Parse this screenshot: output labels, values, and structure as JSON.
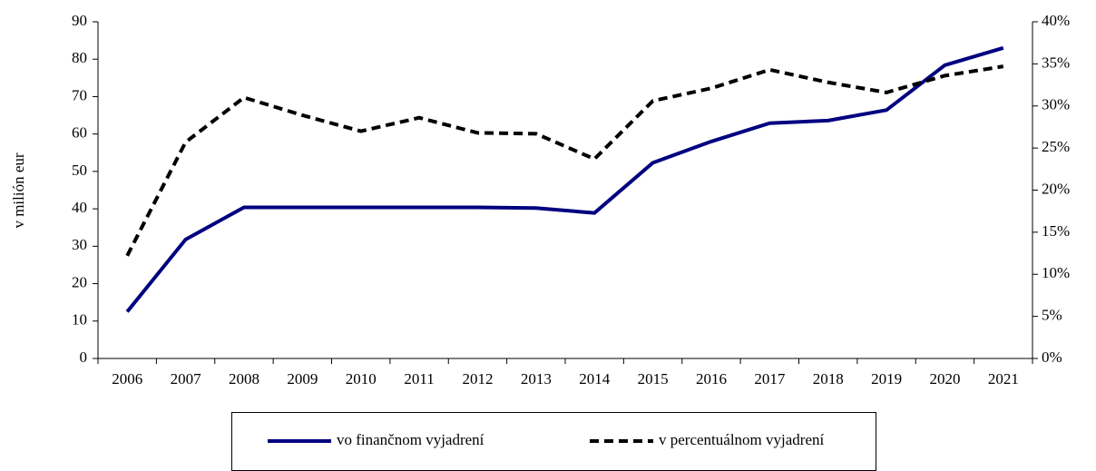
{
  "chart_data": {
    "type": "line",
    "y_label": "v milión eur",
    "categories": [
      "2006",
      "2007",
      "2008",
      "2009",
      "2010",
      "2011",
      "2012",
      "2013",
      "2014",
      "2015",
      "2016",
      "2017",
      "2018",
      "2019",
      "2020",
      "2021"
    ],
    "series": [
      {
        "name": "vo finančnom vyjadrení",
        "color": "#000080",
        "line_style": "solid",
        "values": [
          12.5,
          31.8,
          40.4,
          40.4,
          40.4,
          40.4,
          40.4,
          40.2,
          38.9,
          52.3,
          58.0,
          62.9,
          63.6,
          66.4,
          78.4,
          83.0
        ]
      },
      {
        "name": "v percentuálnom vyjadrení",
        "color": "#000000",
        "line_style": "dashed",
        "axis": "y2",
        "values": [
          12.2,
          25.7,
          31.0,
          28.9,
          27.0,
          28.6,
          26.8,
          26.7,
          23.7,
          30.6,
          32.1,
          34.3,
          32.8,
          31.6,
          33.6,
          34.7
        ]
      }
    ],
    "ylim": [
      0,
      90
    ],
    "yticks": [
      0,
      10,
      20,
      30,
      40,
      50,
      60,
      70,
      80,
      90
    ],
    "y2lim": [
      0,
      40
    ],
    "y2ticks": [
      {
        "value": 0,
        "label": "0%"
      },
      {
        "value": 5,
        "label": "5%"
      },
      {
        "value": 10,
        "label": "10%"
      },
      {
        "value": 15,
        "label": "15%"
      },
      {
        "value": 20,
        "label": "20%"
      },
      {
        "value": 25,
        "label": "25%"
      },
      {
        "value": 30,
        "label": "30%"
      },
      {
        "value": 35,
        "label": "35%"
      },
      {
        "value": 40,
        "label": "40%"
      }
    ],
    "grid": false,
    "legend": "bottom"
  }
}
